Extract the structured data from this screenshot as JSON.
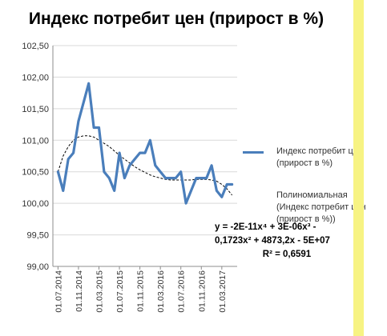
{
  "chart_data": {
    "type": "line",
    "title": "Индекс потребит цен (прирост в %)",
    "xlabel": "",
    "ylabel": "",
    "ylim": [
      99.0,
      102.5
    ],
    "yticks": [
      "99,00",
      "99,50",
      "100,00",
      "100,50",
      "101,00",
      "101,50",
      "102,00",
      "102,50"
    ],
    "xticks": [
      "01.07.2014",
      "01.11.2014",
      "01.03.2015",
      "01.07.2015",
      "01.11.2015",
      "01.03.2016",
      "01.07.2016",
      "01.11.2016",
      "01.03.2017"
    ],
    "grid": true,
    "legend_position": "right",
    "series": [
      {
        "name": "Индекс потребит цен (прирост в %)",
        "color": "#4a7ebb",
        "x": [
          "2014-07",
          "2014-08",
          "2014-09",
          "2014-10",
          "2014-11",
          "2014-12",
          "2015-01",
          "2015-02",
          "2015-03",
          "2015-04",
          "2015-05",
          "2015-06",
          "2015-07",
          "2015-08",
          "2015-09",
          "2015-10",
          "2015-11",
          "2015-12",
          "2016-01",
          "2016-02",
          "2016-03",
          "2016-04",
          "2016-05",
          "2016-06",
          "2016-07",
          "2016-08",
          "2016-09",
          "2016-10",
          "2016-11",
          "2016-12",
          "2017-01",
          "2017-02",
          "2017-03",
          "2017-04",
          "2017-05"
        ],
        "values": [
          100.5,
          100.2,
          100.7,
          100.8,
          101.3,
          101.6,
          101.9,
          101.2,
          101.2,
          100.5,
          100.4,
          100.2,
          100.8,
          100.4,
          100.6,
          100.7,
          100.8,
          100.8,
          101.0,
          100.6,
          100.5,
          100.4,
          100.4,
          100.4,
          100.5,
          100.0,
          100.2,
          100.4,
          100.4,
          100.4,
          100.6,
          100.2,
          100.1,
          100.3,
          100.3
        ]
      },
      {
        "name": "Полиномиальная (Индекс потребит цен (прирост в %))",
        "color": "#000000",
        "style": "dashed",
        "trendline": "polynomial",
        "x": [
          "2014-07",
          "2014-08",
          "2014-09",
          "2014-10",
          "2014-11",
          "2014-12",
          "2015-01",
          "2015-02",
          "2015-03",
          "2015-04",
          "2015-05",
          "2015-06",
          "2015-07",
          "2015-08",
          "2015-09",
          "2015-10",
          "2015-11",
          "2015-12",
          "2016-01",
          "2016-02",
          "2016-03",
          "2016-04",
          "2016-05",
          "2016-06",
          "2016-07",
          "2016-08",
          "2016-09",
          "2016-10",
          "2016-11",
          "2016-12",
          "2017-01",
          "2017-02",
          "2017-03",
          "2017-04",
          "2017-05"
        ],
        "values": [
          100.5,
          100.75,
          100.9,
          101.0,
          101.05,
          101.07,
          101.07,
          101.05,
          101.0,
          100.95,
          100.9,
          100.83,
          100.76,
          100.7,
          100.64,
          100.58,
          100.53,
          100.49,
          100.45,
          100.42,
          100.4,
          100.38,
          100.37,
          100.37,
          100.37,
          100.37,
          100.37,
          100.38,
          100.38,
          100.38,
          100.37,
          100.35,
          100.3,
          100.23,
          100.13
        ]
      }
    ],
    "legend": [
      "Индекс потребит цен (прирост в %)",
      "Полиномиальная (Индекс потребит цен (прирост в %))"
    ],
    "annotation": {
      "equation_line1": "y = -2E-11x⁴ + 3E-06x³ -",
      "equation_line2": "0,1723x² + 4873,2x - 5E+07",
      "r_squared": "R² = 0,6591"
    }
  }
}
